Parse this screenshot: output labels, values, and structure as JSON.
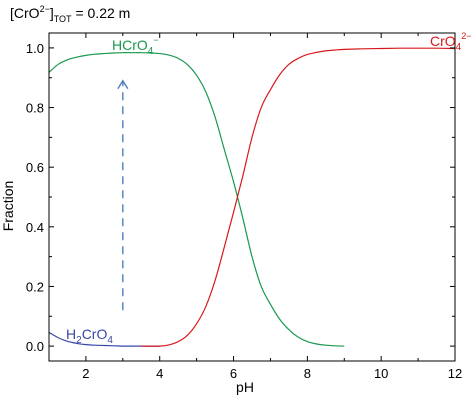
{
  "chart_data": {
    "type": "line",
    "title_parts": {
      "base": "[CrO",
      "sub": "4",
      "sup": "2−",
      "bracket": "]",
      "subscript": "TOT",
      "rest": " = 0.22 m"
    },
    "xlabel": "pH",
    "ylabel": "Fraction",
    "xlim": [
      1,
      12
    ],
    "ylim": [
      -0.05,
      1.05
    ],
    "xticks": [
      2,
      4,
      6,
      8,
      10,
      12
    ],
    "xtick_labels": [
      "2",
      "4",
      "6",
      "8",
      "10",
      "12"
    ],
    "yticks": [
      0.0,
      0.2,
      0.4,
      0.6,
      0.8,
      1.0
    ],
    "ytick_labels": [
      "0.0",
      "0.2",
      "0.4",
      "0.6",
      "0.8",
      "1.0"
    ],
    "grid": false,
    "series": [
      {
        "key": "h2cro4",
        "label_parts": {
          "a": "H",
          "a_sub": "2",
          "b": "CrO",
          "b_sub": "4",
          "b_sup": ""
        },
        "color": "#3a47a6",
        "x": [
          1.0,
          1.25,
          1.5,
          1.75,
          2.0,
          2.25,
          2.5,
          2.75,
          3.0,
          3.5,
          4.0
        ],
        "y": [
          0.046,
          0.028,
          0.016,
          0.009,
          0.005,
          0.003,
          0.002,
          0.001,
          0.0,
          0.0,
          0.0
        ]
      },
      {
        "key": "hcro4",
        "label_parts": {
          "a": "HCrO",
          "a_sub": "4",
          "b": "",
          "b_sub": "",
          "b_sup": "−"
        },
        "color": "#1a9850",
        "x": [
          1.0,
          1.25,
          1.5,
          1.75,
          2.0,
          2.25,
          2.5,
          2.75,
          3.0,
          3.25,
          3.5,
          3.75,
          4.0,
          4.25,
          4.5,
          4.75,
          5.0,
          5.25,
          5.5,
          5.75,
          6.0,
          6.25,
          6.5,
          6.75,
          7.0,
          7.25,
          7.5,
          7.75,
          8.0,
          8.25,
          8.5,
          8.75,
          9.0
        ],
        "y": [
          0.918,
          0.945,
          0.96,
          0.969,
          0.975,
          0.979,
          0.981,
          0.983,
          0.984,
          0.984,
          0.984,
          0.983,
          0.981,
          0.976,
          0.965,
          0.944,
          0.908,
          0.852,
          0.768,
          0.659,
          0.551,
          0.43,
          0.3,
          0.2,
          0.14,
          0.09,
          0.055,
          0.03,
          0.015,
          0.007,
          0.003,
          0.001,
          0.0
        ]
      },
      {
        "key": "cro4",
        "label_parts": {
          "a": "CrO",
          "a_sub": "4",
          "b": "",
          "b_sub": "",
          "b_sup": "2−"
        },
        "color": "#d7191c",
        "x": [
          3.5,
          4.0,
          4.25,
          4.5,
          4.75,
          5.0,
          5.25,
          5.5,
          5.75,
          6.0,
          6.25,
          6.5,
          6.75,
          7.0,
          7.25,
          7.5,
          7.75,
          8.0,
          8.25,
          8.5,
          8.75,
          9.0,
          9.5,
          10.0,
          10.5,
          11.0,
          11.5,
          12.0
        ],
        "y": [
          0.0,
          0.0,
          0.004,
          0.015,
          0.036,
          0.075,
          0.133,
          0.22,
          0.332,
          0.449,
          0.57,
          0.7,
          0.8,
          0.86,
          0.91,
          0.945,
          0.965,
          0.978,
          0.985,
          0.99,
          0.993,
          0.995,
          0.997,
          0.998,
          0.999,
          0.999,
          0.999,
          0.998
        ]
      }
    ],
    "annotation": {
      "type": "dashed-arrow",
      "color": "#4f81bd",
      "x": 3.0,
      "y_from": 0.12,
      "y_to": 0.89
    }
  }
}
